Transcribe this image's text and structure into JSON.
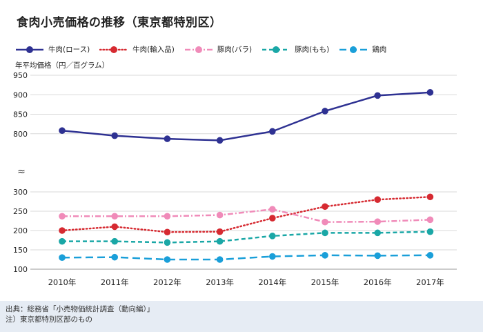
{
  "chart_data": {
    "type": "line",
    "title": "食肉小売価格の推移（東京都特別区）",
    "ylabel": "年平均価格（円／百グラム）",
    "xlabel": "",
    "categories": [
      "2010年",
      "2011年",
      "2012年",
      "2013年",
      "2014年",
      "2015年",
      "2016年",
      "2017年"
    ],
    "ylim": [
      100,
      950
    ],
    "axis_break": {
      "symbol": "≈",
      "between": [
        300,
        750
      ]
    },
    "y_ticks_lower": [
      100,
      150,
      200,
      250,
      300
    ],
    "y_ticks_upper": [
      800,
      850,
      900,
      950
    ],
    "grid": true,
    "legend_position": "top",
    "series": [
      {
        "name": "牛肉(ロース)",
        "color": "#2e3192",
        "style": "solid",
        "values": [
          808,
          795,
          787,
          783,
          806,
          858,
          898,
          906
        ]
      },
      {
        "name": "牛肉(輸入品)",
        "color": "#d62a31",
        "style": "dotted",
        "values": [
          200,
          210,
          196,
          197,
          232,
          262,
          280,
          287
        ]
      },
      {
        "name": "豚肉(バラ)",
        "color": "#f08bb9",
        "style": "dashdot",
        "values": [
          237,
          237,
          237,
          240,
          255,
          222,
          223,
          228
        ]
      },
      {
        "name": "豚肉(もも)",
        "color": "#1aa7a6",
        "style": "dashed",
        "values": [
          172,
          172,
          169,
          172,
          186,
          194,
          194,
          197
        ]
      },
      {
        "name": "鶏肉",
        "color": "#1a9fd9",
        "style": "longdash",
        "values": [
          130,
          131,
          125,
          125,
          133,
          136,
          135,
          136
        ]
      }
    ]
  },
  "footer": {
    "source": "出典：総務省「小売物価統計調査（動向編）」",
    "note": "注）東京都特別区部のもの"
  }
}
